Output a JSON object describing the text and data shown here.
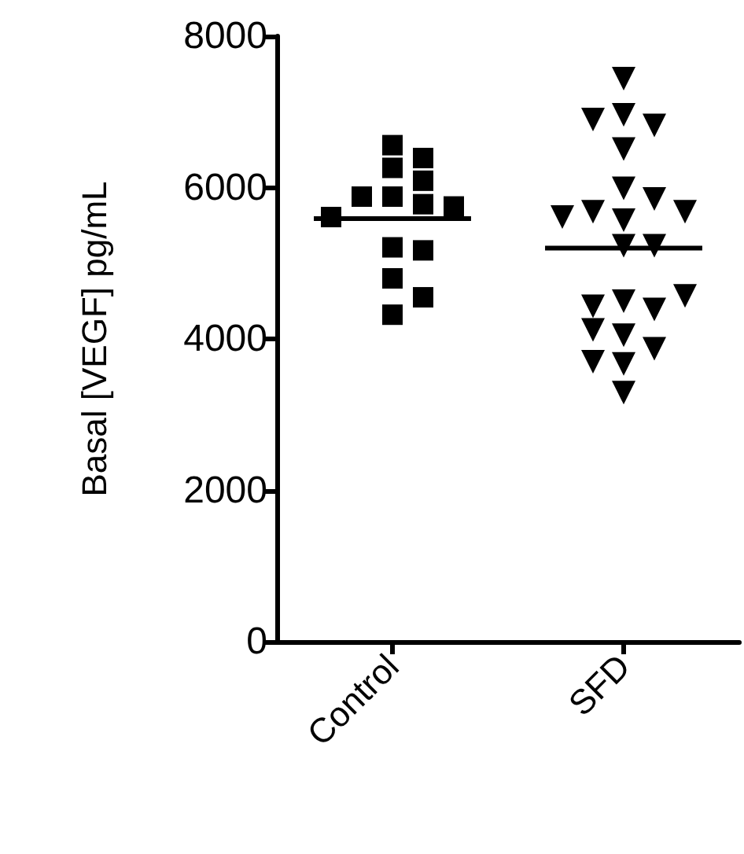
{
  "chart_data": {
    "type": "scatter",
    "ylabel": "Basal [VEGF] pg/mL",
    "categories": [
      "Control",
      "SFD"
    ],
    "ylim": [
      0,
      8000
    ],
    "yticks": [
      0,
      2000,
      4000,
      6000,
      8000
    ],
    "series": [
      {
        "marker": "square",
        "color": "#000000",
        "x": [
          "Control",
          "Control",
          "Control",
          "Control",
          "Control",
          "Control",
          "Control",
          "Control",
          "Control",
          "Control",
          "Control",
          "Control",
          "Control",
          "Control"
        ],
        "values": [
          6560,
          6390,
          6260,
          6090,
          5880,
          5880,
          5780,
          5750,
          5610,
          5210,
          5170,
          4800,
          4550,
          4320
        ]
      },
      {
        "marker": "triangle",
        "color": "#000000",
        "x": [
          "SFD",
          "SFD",
          "SFD",
          "SFD",
          "SFD",
          "SFD",
          "SFD",
          "SFD",
          "SFD",
          "SFD",
          "SFD",
          "SFD",
          "SFD",
          "SFD",
          "SFD",
          "SFD",
          "SFD",
          "SFD",
          "SFD",
          "SFD",
          "SFD",
          "SFD",
          "SFD"
        ],
        "values": [
          7440,
          6960,
          6820,
          6900,
          6510,
          5990,
          5850,
          5570,
          5680,
          5680,
          5610,
          5230,
          5230,
          4500,
          4390,
          4430,
          4570,
          4050,
          4120,
          3870,
          3670,
          3700,
          3290
        ]
      },
      {
        "type": "box",
        "color": "#000000",
        "boxes": [
          {
            "low": 5590,
            "q1": 5590,
            "median": 5590,
            "q3": 5590,
            "high": 5590
          },
          {
            "low": 5200,
            "q1": 5200,
            "median": 5200,
            "q3": 5200,
            "high": 5200
          }
        ]
      }
    ]
  }
}
